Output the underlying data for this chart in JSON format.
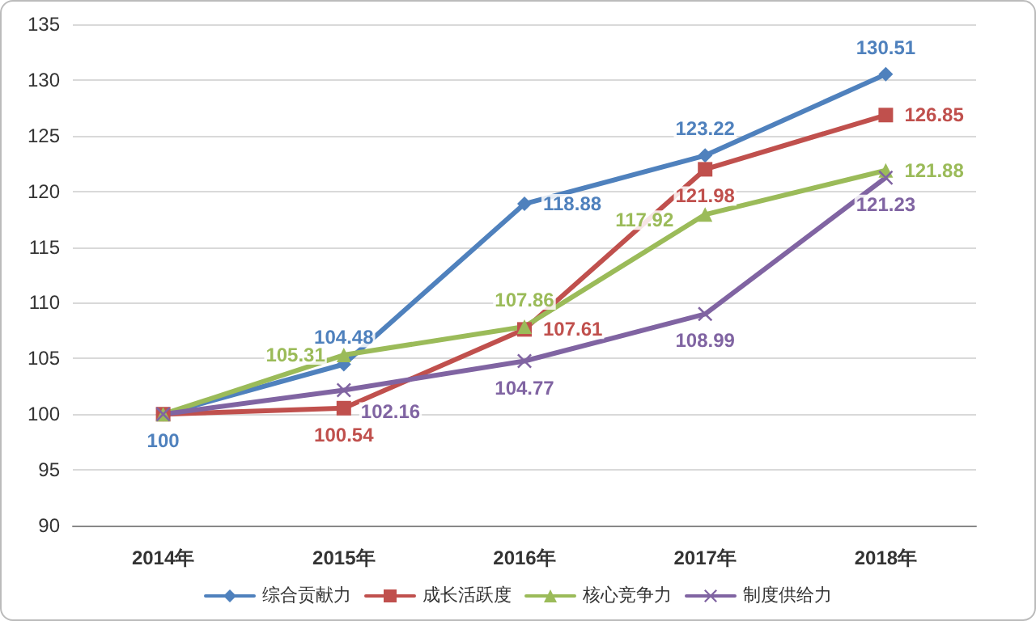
{
  "chart_data": {
    "type": "line",
    "categories": [
      "2014年",
      "2015年",
      "2016年",
      "2017年",
      "2018年"
    ],
    "series": [
      {
        "name": "综合贡献力",
        "color": "#4f81bd",
        "marker": "diamond",
        "values": [
          100,
          104.48,
          118.88,
          123.22,
          130.51
        ],
        "value_labels": [
          "100",
          "104.48",
          "118.88",
          "123.22",
          "130.51"
        ]
      },
      {
        "name": "成长活跃度",
        "color": "#c0504d",
        "marker": "square",
        "values": [
          100,
          100.54,
          107.61,
          121.98,
          126.85
        ],
        "value_labels": [
          null,
          "100.54",
          "107.61",
          "121.98",
          "126.85"
        ]
      },
      {
        "name": "核心竞争力",
        "color": "#9bbb59",
        "marker": "triangle",
        "values": [
          100,
          105.31,
          107.86,
          117.92,
          121.88
        ],
        "value_labels": [
          null,
          "105.31",
          "107.86",
          "117.92",
          "121.88"
        ]
      },
      {
        "name": "制度供给力",
        "color": "#8064a2",
        "marker": "cross",
        "values": [
          100,
          102.16,
          104.77,
          108.99,
          121.23
        ],
        "value_labels": [
          null,
          "102.16",
          "104.77",
          "108.99",
          "121.23"
        ]
      }
    ],
    "ylim": [
      90,
      135
    ],
    "yticks": [
      90,
      95,
      100,
      105,
      110,
      115,
      120,
      125,
      130,
      135
    ],
    "grid": "y",
    "legend": "bottom",
    "line_style": "solid"
  }
}
